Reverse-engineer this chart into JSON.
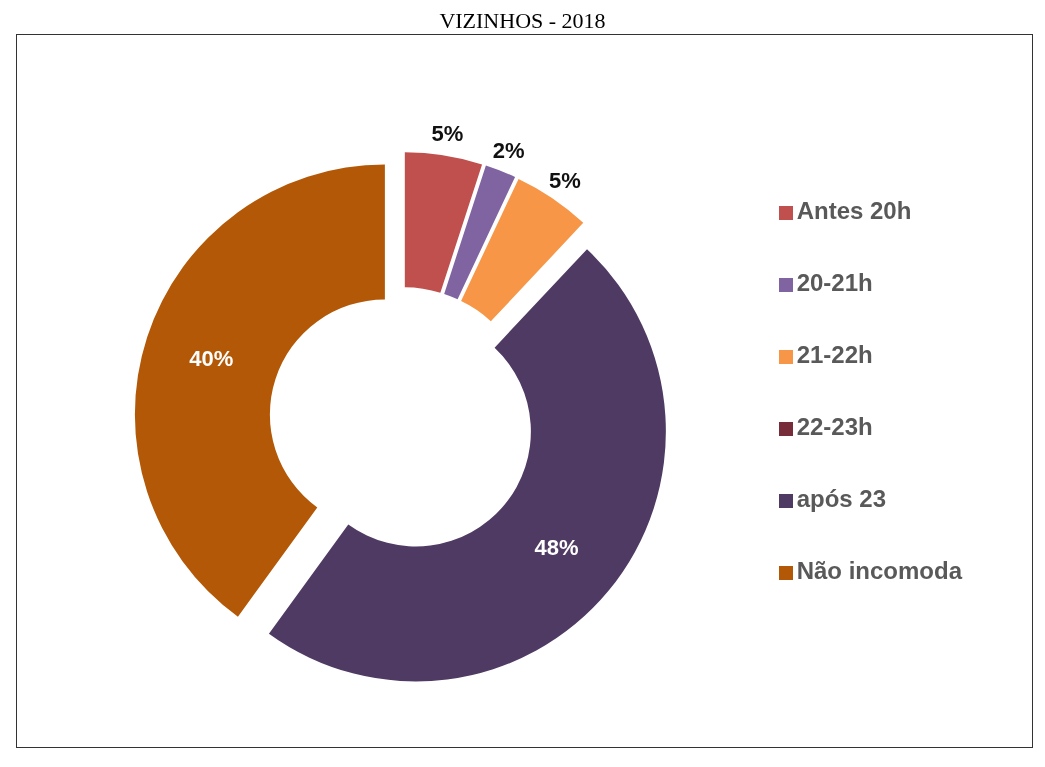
{
  "chart_data": {
    "type": "donut",
    "title": "VIZINHOS - 2018",
    "categories": [
      "Antes 20h",
      "20-21h",
      "21-22h",
      "22-23h",
      "após 23",
      "Não incomoda"
    ],
    "values": [
      5,
      2,
      5,
      0,
      48,
      40
    ],
    "colors": [
      "#c0504d",
      "#8064a2",
      "#f79646",
      "#772c3a",
      "#4f3a63",
      "#b35806"
    ],
    "value_labels": [
      "5%",
      "2%",
      "5%",
      null,
      "48%",
      "40%"
    ],
    "legend": "right"
  }
}
